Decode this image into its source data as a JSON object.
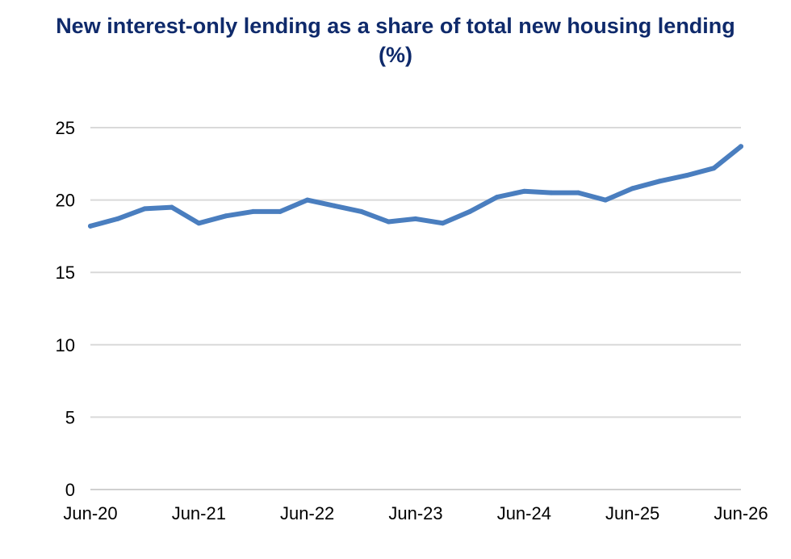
{
  "chart_data": {
    "type": "line",
    "title_line1": "New interest-only lending as a share of total new housing lending",
    "title_line2": "(%)",
    "xlabel": "",
    "ylabel": "",
    "ylim": [
      0,
      25
    ],
    "yticks": [
      0,
      5,
      10,
      15,
      20,
      25
    ],
    "grid": "horizontal",
    "line_color": "#4a7ebf",
    "x_tick_labels": [
      "Jun-20",
      "Jun-21",
      "Jun-22",
      "Jun-23",
      "Jun-24",
      "Jun-25",
      "Jun-26"
    ],
    "x": [
      "Jun-20",
      "Sep-20",
      "Dec-20",
      "Mar-21",
      "Jun-21",
      "Sep-21",
      "Dec-21",
      "Mar-22",
      "Jun-22",
      "Sep-22",
      "Dec-22",
      "Mar-23",
      "Jun-23",
      "Sep-23",
      "Dec-23",
      "Mar-24",
      "Jun-24",
      "Sep-24",
      "Dec-24",
      "Mar-25",
      "Jun-25",
      "Sep-25",
      "Dec-25",
      "Mar-26",
      "Jun-26"
    ],
    "series": [
      {
        "values": [
          18.2,
          18.7,
          19.4,
          19.5,
          18.4,
          18.9,
          19.2,
          19.2,
          20.0,
          19.6,
          19.2,
          18.5,
          18.7,
          18.4,
          19.2,
          20.2,
          20.6,
          20.5,
          20.5,
          20.0,
          20.8,
          21.3,
          21.7,
          22.2,
          23.7
        ]
      }
    ]
  }
}
